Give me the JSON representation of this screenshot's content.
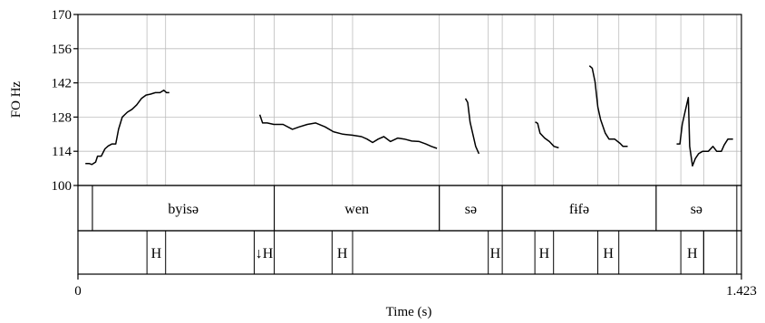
{
  "chart_data": {
    "type": "line",
    "ylabel": "FO Hz",
    "xlabel": "Time (s)",
    "xlim": [
      0,
      1.423
    ],
    "ylim": [
      100,
      170
    ],
    "x_ticks": [
      "0",
      "1.423"
    ],
    "y_ticks": [
      "170",
      "156",
      "142",
      "128",
      "114",
      "100"
    ],
    "grid": true,
    "series": [
      {
        "points": [
          [
            0.016,
            109.0
          ],
          [
            0.024,
            109.0
          ],
          [
            0.03,
            108.6
          ],
          [
            0.038,
            109.6
          ],
          [
            0.042,
            112.0
          ],
          [
            0.05,
            112.0
          ],
          [
            0.058,
            115.0
          ],
          [
            0.065,
            116.2
          ],
          [
            0.073,
            117.0
          ],
          [
            0.081,
            117.0
          ],
          [
            0.087,
            123.0
          ],
          [
            0.095,
            128.0
          ],
          [
            0.106,
            130.0
          ],
          [
            0.116,
            131.2
          ],
          [
            0.126,
            133.0
          ],
          [
            0.136,
            135.6
          ],
          [
            0.146,
            137.0
          ],
          [
            0.156,
            137.4
          ],
          [
            0.166,
            138.0
          ],
          [
            0.176,
            138.0
          ],
          [
            0.184,
            139.0
          ],
          [
            0.19,
            138.0
          ],
          [
            0.196,
            138.0
          ]
        ]
      },
      {
        "points": [
          [
            0.39,
            129.0
          ],
          [
            0.396,
            125.6
          ],
          [
            0.406,
            125.6
          ],
          [
            0.42,
            125.0
          ],
          [
            0.44,
            125.0
          ],
          [
            0.46,
            123.0
          ],
          [
            0.475,
            124.0
          ],
          [
            0.492,
            125.0
          ],
          [
            0.51,
            125.6
          ],
          [
            0.53,
            124.0
          ],
          [
            0.548,
            122.0
          ],
          [
            0.568,
            121.0
          ],
          [
            0.588,
            120.6
          ],
          [
            0.608,
            120.0
          ],
          [
            0.62,
            119.0
          ],
          [
            0.632,
            117.6
          ],
          [
            0.644,
            119.0
          ],
          [
            0.656,
            120.0
          ],
          [
            0.67,
            118.0
          ],
          [
            0.686,
            119.4
          ],
          [
            0.7,
            119.0
          ],
          [
            0.716,
            118.2
          ],
          [
            0.732,
            118.0
          ],
          [
            0.746,
            117.0
          ],
          [
            0.758,
            116.0
          ],
          [
            0.77,
            115.2
          ]
        ]
      },
      {
        "points": [
          [
            0.831,
            135.6
          ],
          [
            0.836,
            134.0
          ],
          [
            0.841,
            126.0
          ],
          [
            0.847,
            121.0
          ],
          [
            0.853,
            116.0
          ],
          [
            0.86,
            113.0
          ]
        ]
      },
      {
        "points": [
          [
            0.981,
            126.0
          ],
          [
            0.986,
            125.4
          ],
          [
            0.991,
            121.4
          ],
          [
            1.001,
            119.4
          ],
          [
            1.011,
            118.0
          ],
          [
            1.021,
            116.0
          ],
          [
            1.031,
            115.4
          ]
        ]
      },
      {
        "points": [
          [
            1.097,
            149.0
          ],
          [
            1.103,
            148.0
          ],
          [
            1.109,
            142.4
          ],
          [
            1.115,
            132.0
          ],
          [
            1.121,
            127.0
          ],
          [
            1.131,
            121.4
          ],
          [
            1.139,
            119.0
          ],
          [
            1.151,
            119.0
          ],
          [
            1.163,
            117.2
          ],
          [
            1.169,
            116.0
          ],
          [
            1.179,
            116.0
          ]
        ]
      },
      {
        "points": [
          [
            1.284,
            117.0
          ],
          [
            1.291,
            117.0
          ],
          [
            1.296,
            125.0
          ],
          [
            1.303,
            131.0
          ],
          [
            1.309,
            136.0
          ],
          [
            1.312,
            116.0
          ],
          [
            1.318,
            108.0
          ],
          [
            1.324,
            111.0
          ],
          [
            1.331,
            113.0
          ],
          [
            1.34,
            114.0
          ],
          [
            1.352,
            114.0
          ],
          [
            1.362,
            116.0
          ],
          [
            1.37,
            114.0
          ],
          [
            1.38,
            114.0
          ],
          [
            1.386,
            116.6
          ],
          [
            1.394,
            119.0
          ],
          [
            1.405,
            119.0
          ]
        ]
      }
    ],
    "word_tier": [
      {
        "start": 0.0,
        "end": 0.031,
        "label": ""
      },
      {
        "start": 0.031,
        "end": 0.421,
        "label": "byisə"
      },
      {
        "start": 0.421,
        "end": 0.775,
        "label": "wen"
      },
      {
        "start": 0.775,
        "end": 0.91,
        "label": "sə"
      },
      {
        "start": 0.91,
        "end": 1.24,
        "label": "fɨfə"
      },
      {
        "start": 1.24,
        "end": 1.413,
        "label": "sə"
      }
    ],
    "tone_tier": [
      {
        "start": 0.148,
        "end": 0.188,
        "label": "H"
      },
      {
        "start": 0.378,
        "end": 0.421,
        "label": "↓H"
      },
      {
        "start": 0.545,
        "end": 0.589,
        "label": "H"
      },
      {
        "start": 0.88,
        "end": 0.91,
        "label": "H"
      },
      {
        "start": 0.98,
        "end": 1.02,
        "label": "H"
      },
      {
        "start": 1.115,
        "end": 1.16,
        "label": "H"
      },
      {
        "start": 1.293,
        "end": 1.342,
        "label": "H"
      },
      {
        "start": 1.342,
        "end": 1.413,
        "label": ""
      }
    ],
    "grid_x": [
      0.148,
      0.188,
      0.378,
      0.421,
      0.545,
      0.589,
      0.775,
      0.88,
      0.91,
      0.98,
      1.02,
      1.115,
      1.16,
      1.24,
      1.293,
      1.342,
      1.413
    ]
  }
}
